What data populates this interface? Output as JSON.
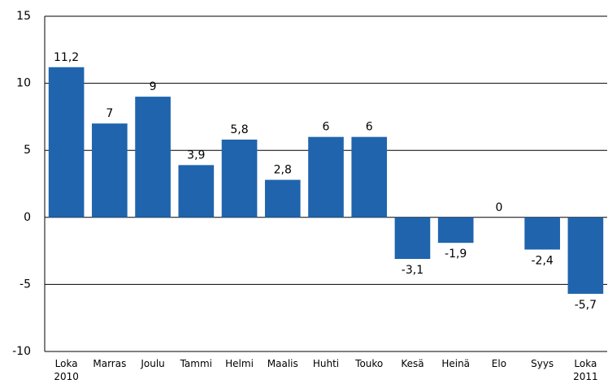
{
  "chart_data": {
    "type": "bar",
    "categories": [
      "Loka\n2010",
      "Marras",
      "Joulu",
      "Tammi",
      "Helmi",
      "Maalis",
      "Huhti",
      "Touko",
      "Kesä",
      "Heinä",
      "Elo",
      "Syys",
      "Loka\n2011"
    ],
    "values": [
      11.2,
      7,
      9,
      3.9,
      5.8,
      2.8,
      6,
      6,
      -3.1,
      -1.9,
      0,
      -2.4,
      -5.7
    ],
    "value_labels": [
      "11,2",
      "7",
      "9",
      "3,9",
      "5,8",
      "2,8",
      "6",
      "6",
      "-3,1",
      "-1,9",
      "0",
      "-2,4",
      "-5,7"
    ],
    "color": "#1f64ad",
    "ylim": [
      -10,
      15
    ],
    "yticks": [
      -10,
      -5,
      0,
      5,
      10,
      15
    ],
    "grid": true
  }
}
